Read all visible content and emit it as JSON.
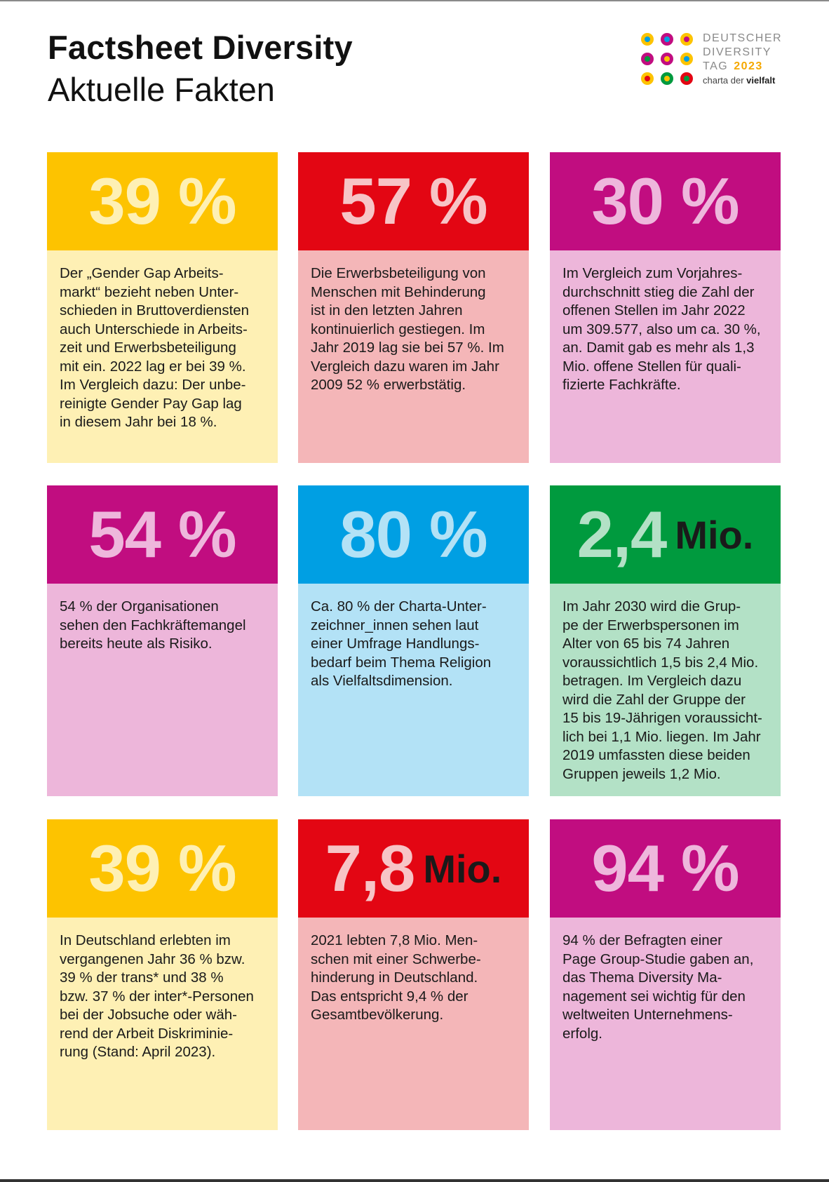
{
  "header": {
    "title": "Factsheet Diversity",
    "subtitle": "Aktuelle Fakten"
  },
  "logo": {
    "line1": "DEUTSCHER",
    "line2": "DIVERSITY",
    "line3": "TAG",
    "year": "2023",
    "sub_prefix": "charta der ",
    "sub_bold": "vielfalt",
    "dots": [
      {
        "outer": "#fdc300",
        "inner": "#009fe3"
      },
      {
        "outer": "#c10d80",
        "inner": "#009fe3"
      },
      {
        "outer": "#fdc300",
        "inner": "#c10d80"
      },
      {
        "outer": "#c10d80",
        "inner": "#009a3e"
      },
      {
        "outer": "#c10d80",
        "inner": "#fdc300"
      },
      {
        "outer": "#fdc300",
        "inner": "#009fe3"
      },
      {
        "outer": "#fdc300",
        "inner": "#e30613"
      },
      {
        "outer": "#009a3e",
        "inner": "#fdc300"
      },
      {
        "outer": "#e30613",
        "inner": "#009a3e"
      }
    ]
  },
  "cards": [
    {
      "value": "39 %",
      "unit": "",
      "color": "yellow",
      "text": "Der „Gender Gap Arbeits-\nmarkt“ bezieht neben Unter-\nschieden in Bruttoverdiensten\nauch Unterschiede in Arbeits-\nzeit und Erwerbsbeteiligung\nmit ein. 2022 lag er bei 39 %.\nIm Vergleich dazu: Der unbe-\nreinigte Gender Pay Gap lag\nin diesem Jahr bei 18 %."
    },
    {
      "value": "57 %",
      "unit": "",
      "color": "red",
      "text": "Die Erwerbsbeteiligung von\nMenschen mit Behinderung\nist in den letzten Jahren\nkontinuierlich gestiegen. Im\nJahr 2019 lag sie bei 57 %. Im\nVergleich dazu waren im Jahr\n2009 52 % erwerbstätig."
    },
    {
      "value": "30 %",
      "unit": "",
      "color": "purple",
      "text": "Im Vergleich zum Vorjahres-\ndurchschnitt stieg die Zahl der\noffenen Stellen im Jahr 2022\num 309.577, also um ca. 30 %,\nan. Damit gab es mehr als 1,3\nMio. offene Stellen für quali-\nfizierte Fachkräfte."
    },
    {
      "value": "54 %",
      "unit": "",
      "color": "purple",
      "text": "54 % der Organisationen\nsehen den Fachkräftemangel\nbereits heute als Risiko."
    },
    {
      "value": "80 %",
      "unit": "",
      "color": "blue",
      "text": "Ca. 80 % der Charta-Unter-\nzeichner_innen sehen laut\neiner Umfrage Handlungs-\nbedarf beim Thema Religion\nals Vielfaltsdimension."
    },
    {
      "value": "2,4",
      "unit": "Mio.",
      "color": "green",
      "text": "Im Jahr 2030 wird die Grup-\npe der Erwerbspersonen im\nAlter von 65 bis 74 Jahren\nvoraussichtlich 1,5 bis 2,4 Mio.\nbetragen. Im Vergleich dazu\nwird die Zahl der Gruppe der\n15 bis 19-Jährigen voraussicht-\nlich bei 1,1 Mio. liegen. Im Jahr\n2019 umfassten diese beiden\nGruppen jeweils 1,2 Mio."
    },
    {
      "value": "39 %",
      "unit": "",
      "color": "yellow",
      "text": "In Deutschland erlebten im\nvergangenen Jahr 36 % bzw.\n39 % der trans* und 38 %\nbzw. 37 % der inter*-Personen\nbei der Jobsuche oder wäh-\nrend der Arbeit Diskriminie-\nrung (Stand: April 2023)."
    },
    {
      "value": "7,8",
      "unit": "Mio.",
      "color": "red",
      "text": "2021 lebten 7,8 Mio. Men-\nschen mit einer Schwerbe-\nhinderung in Deutschland.\nDas entspricht 9,4 % der\nGesamtbevölkerung."
    },
    {
      "value": "94 %",
      "unit": "",
      "color": "purple",
      "text": "94 % der Befragten einer\nPage Group-Studie gaben an,\ndas Thema Diversity Ma-\nnagement sei wichtig für den\nweltweiten Unternehmens-\nerfolg."
    }
  ]
}
